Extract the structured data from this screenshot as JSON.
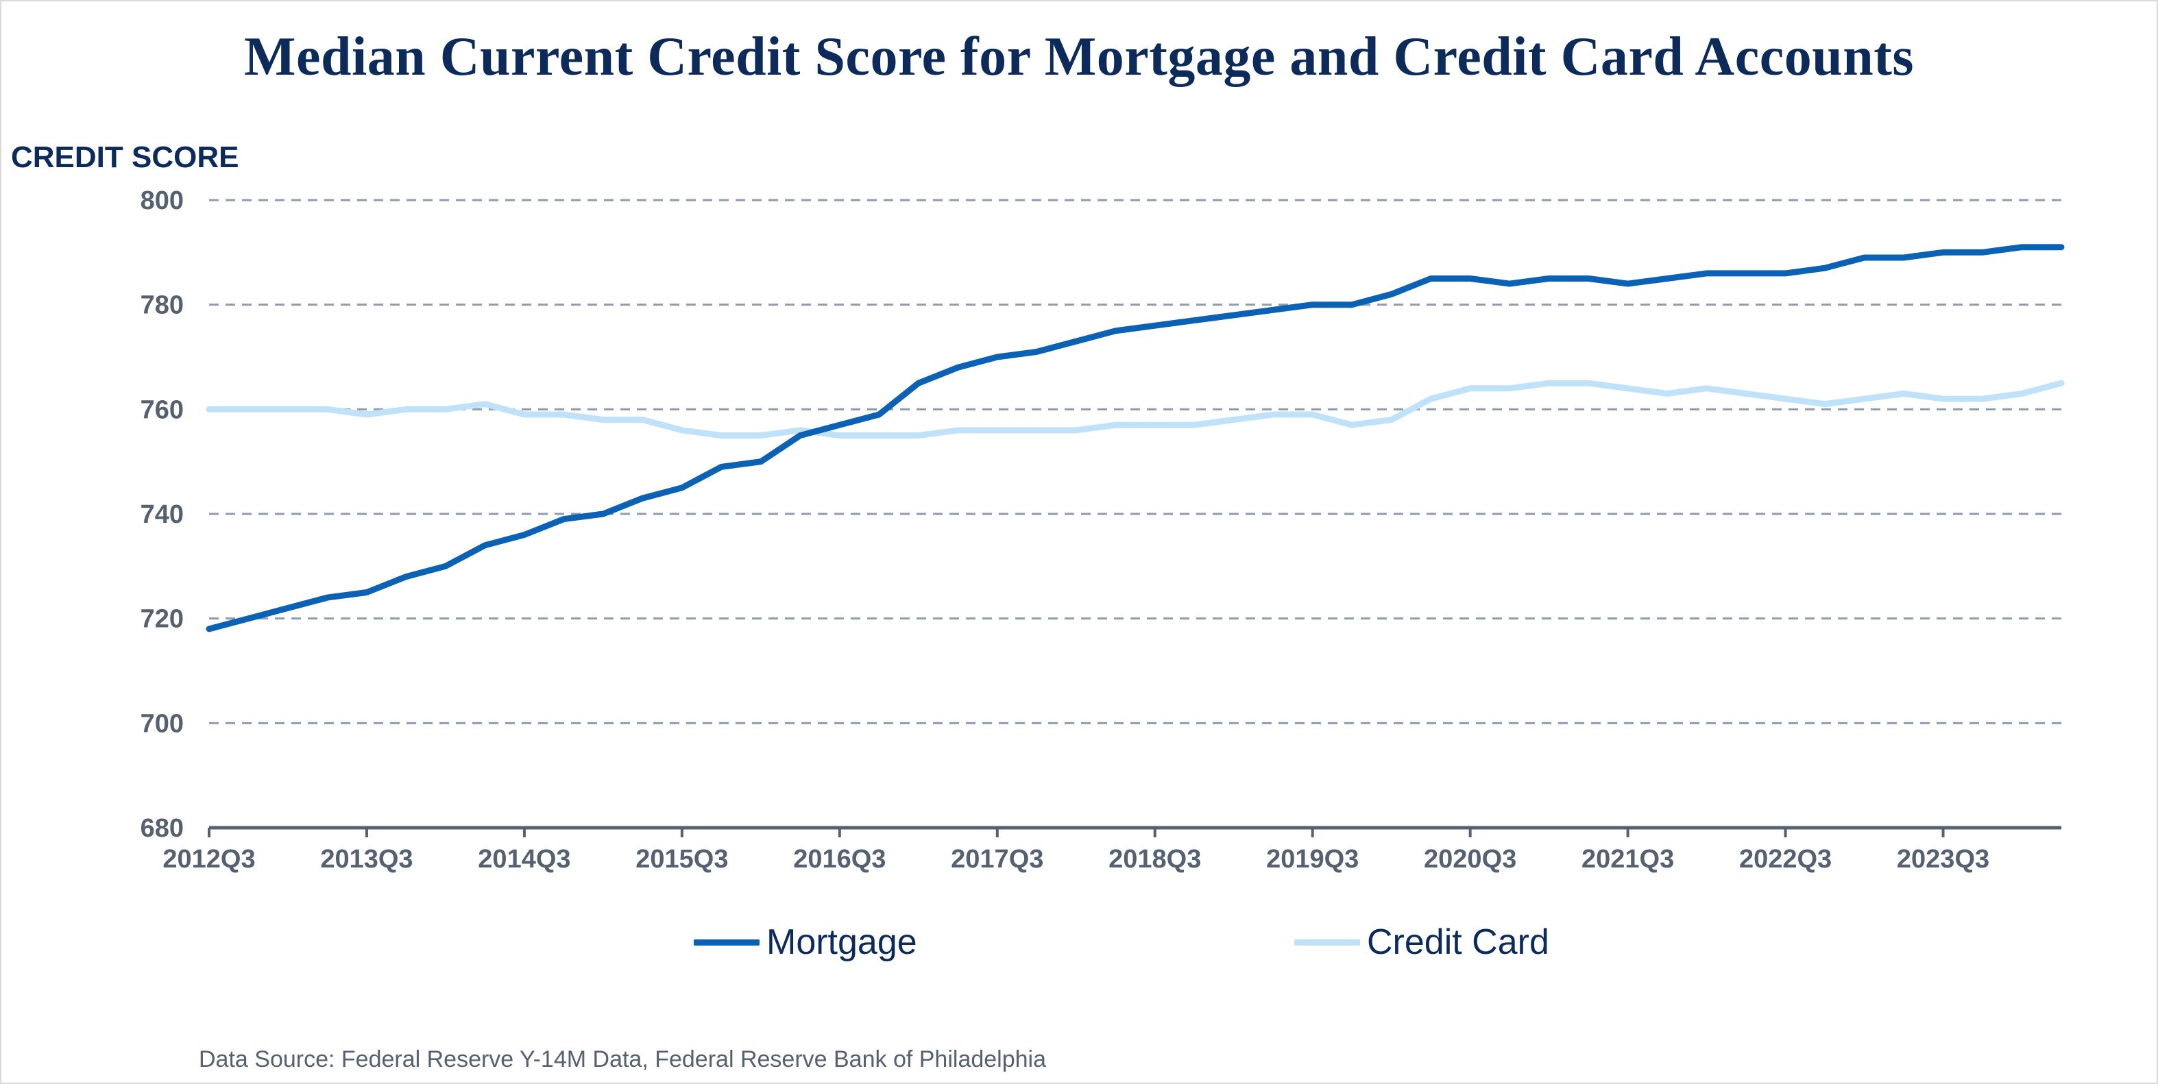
{
  "chart_data": {
    "type": "line",
    "title": "Median Current Credit Score for Mortgage and Credit Card Accounts",
    "ylabel": "CREDIT SCORE",
    "xlabel": "",
    "ylim": [
      680,
      800
    ],
    "yticks": [
      680,
      700,
      720,
      740,
      760,
      780,
      800
    ],
    "xtick_labels": [
      "2012Q3",
      "2013Q3",
      "2014Q3",
      "2015Q3",
      "2016Q3",
      "2017Q3",
      "2018Q3",
      "2019Q3",
      "2020Q3",
      "2021Q3",
      "2022Q3",
      "2023Q3"
    ],
    "grid": "horizontal dashed",
    "legend_position": "bottom",
    "x": [
      "2012Q3",
      "2012Q4",
      "2013Q1",
      "2013Q2",
      "2013Q3",
      "2013Q4",
      "2014Q1",
      "2014Q2",
      "2014Q3",
      "2014Q4",
      "2015Q1",
      "2015Q2",
      "2015Q3",
      "2015Q4",
      "2016Q1",
      "2016Q2",
      "2016Q3",
      "2016Q4",
      "2017Q1",
      "2017Q2",
      "2017Q3",
      "2017Q4",
      "2018Q1",
      "2018Q2",
      "2018Q3",
      "2018Q4",
      "2019Q1",
      "2019Q2",
      "2019Q3",
      "2019Q4",
      "2020Q1",
      "2020Q2",
      "2020Q3",
      "2020Q4",
      "2021Q1",
      "2021Q2",
      "2021Q3",
      "2021Q4",
      "2022Q1",
      "2022Q2",
      "2022Q3",
      "2022Q4",
      "2023Q1",
      "2023Q2",
      "2023Q3",
      "2023Q4",
      "2024Q1",
      "2024Q2"
    ],
    "series": [
      {
        "name": "Mortgage",
        "color": "#0b62b5",
        "values": [
          718,
          720,
          722,
          724,
          725,
          728,
          730,
          734,
          736,
          739,
          740,
          743,
          745,
          749,
          750,
          755,
          757,
          759,
          765,
          768,
          770,
          771,
          773,
          775,
          776,
          777,
          778,
          779,
          780,
          780,
          782,
          785,
          785,
          784,
          785,
          785,
          784,
          785,
          786,
          786,
          786,
          787,
          789,
          789,
          790,
          790,
          791,
          791
        ]
      },
      {
        "name": "Credit Card",
        "color": "#bfe2f8",
        "values": [
          760,
          760,
          760,
          760,
          759,
          760,
          760,
          761,
          759,
          759,
          758,
          758,
          756,
          755,
          755,
          756,
          755,
          755,
          755,
          756,
          756,
          756,
          756,
          757,
          757,
          757,
          758,
          759,
          759,
          757,
          758,
          762,
          764,
          764,
          765,
          765,
          764,
          763,
          764,
          763,
          762,
          761,
          762,
          763,
          762,
          762,
          763,
          765
        ]
      }
    ]
  },
  "footer": {
    "source": "Data Source: Federal Reserve Y-14M Data, Federal Reserve Bank of Philadelphia"
  }
}
